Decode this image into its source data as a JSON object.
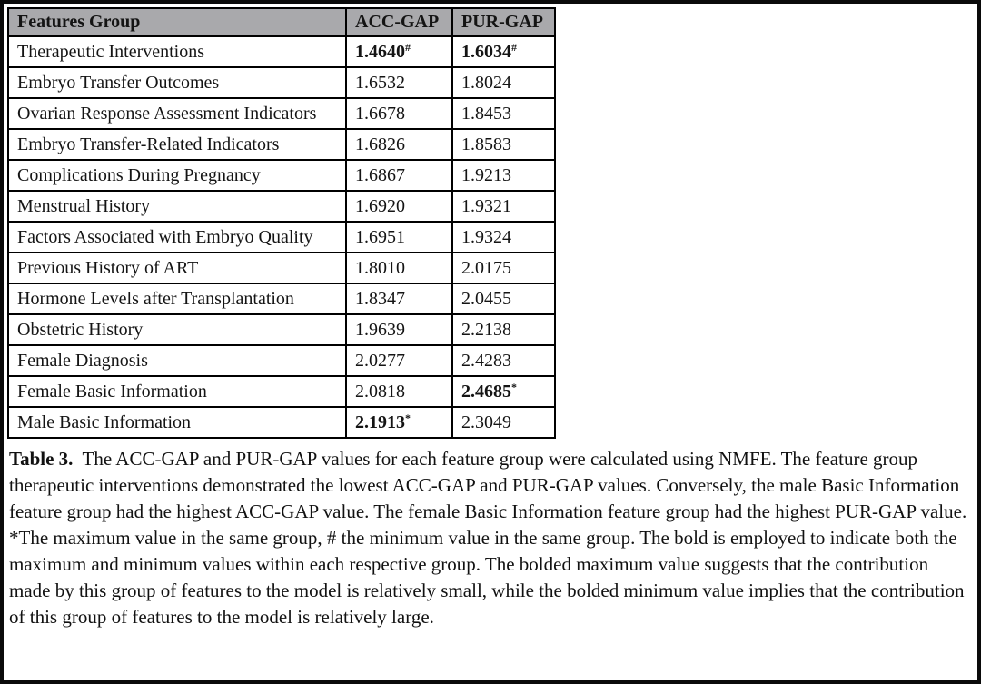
{
  "colors": {
    "header_bg": "#a9a9ac",
    "border": "#000000",
    "text": "#141414",
    "frame_border": "#0a0a0a"
  },
  "table": {
    "headers": [
      "Features Group",
      "ACC-GAP",
      "PUR-GAP"
    ],
    "rows": [
      {
        "feature": "Therapeutic Interventions",
        "acc": {
          "value": "1.4640",
          "marker": "#",
          "bold": true
        },
        "pur": {
          "value": "1.6034",
          "marker": "#",
          "bold": true
        }
      },
      {
        "feature": "Embryo Transfer Outcomes",
        "acc": {
          "value": "1.6532",
          "marker": "",
          "bold": false
        },
        "pur": {
          "value": "1.8024",
          "marker": "",
          "bold": false
        }
      },
      {
        "feature": "Ovarian Response Assessment Indicators",
        "acc": {
          "value": "1.6678",
          "marker": "",
          "bold": false
        },
        "pur": {
          "value": "1.8453",
          "marker": "",
          "bold": false
        }
      },
      {
        "feature": "Embryo Transfer-Related Indicators",
        "acc": {
          "value": "1.6826",
          "marker": "",
          "bold": false
        },
        "pur": {
          "value": "1.8583",
          "marker": "",
          "bold": false
        }
      },
      {
        "feature": "Complications During Pregnancy",
        "acc": {
          "value": "1.6867",
          "marker": "",
          "bold": false
        },
        "pur": {
          "value": "1.9213",
          "marker": "",
          "bold": false
        }
      },
      {
        "feature": "Menstrual History",
        "acc": {
          "value": "1.6920",
          "marker": "",
          "bold": false
        },
        "pur": {
          "value": "1.9321",
          "marker": "",
          "bold": false
        }
      },
      {
        "feature": "Factors Associated with Embryo Quality",
        "acc": {
          "value": "1.6951",
          "marker": "",
          "bold": false
        },
        "pur": {
          "value": "1.9324",
          "marker": "",
          "bold": false
        }
      },
      {
        "feature": "Previous History of ART",
        "acc": {
          "value": "1.8010",
          "marker": "",
          "bold": false
        },
        "pur": {
          "value": "2.0175",
          "marker": "",
          "bold": false
        }
      },
      {
        "feature": "Hormone Levels after Transplantation",
        "acc": {
          "value": "1.8347",
          "marker": "",
          "bold": false
        },
        "pur": {
          "value": "2.0455",
          "marker": "",
          "bold": false
        }
      },
      {
        "feature": "Obstetric History",
        "acc": {
          "value": "1.9639",
          "marker": "",
          "bold": false
        },
        "pur": {
          "value": "2.2138",
          "marker": "",
          "bold": false
        }
      },
      {
        "feature": "Female Diagnosis",
        "acc": {
          "value": "2.0277",
          "marker": "",
          "bold": false
        },
        "pur": {
          "value": "2.4283",
          "marker": "",
          "bold": false
        }
      },
      {
        "feature": "Female Basic Information",
        "acc": {
          "value": "2.0818",
          "marker": "",
          "bold": false
        },
        "pur": {
          "value": "2.4685",
          "marker": "*",
          "bold": true
        }
      },
      {
        "feature": "Male Basic Information",
        "acc": {
          "value": "2.1913",
          "marker": "*",
          "bold": true
        },
        "pur": {
          "value": "2.3049",
          "marker": "",
          "bold": false
        }
      }
    ]
  },
  "caption": {
    "label": "Table 3.",
    "text": "  The ACC-GAP and PUR-GAP values for each feature group were calculated using NMFE. The feature group therapeutic interventions demonstrated the lowest ACC-GAP and PUR-GAP values. Conversely, the male Basic Information feature group had the highest ACC-GAP value. The female Basic Information feature group had the highest PUR-GAP value. *The maximum value in the same group, # the minimum value in the same group. The bold is employed to indicate both the maximum and minimum values within each respective group. The bolded maximum value suggests that the contribution made by this group of features to the model is relatively small, while the bolded minimum value implies that the contribution of this group of features to the model is relatively large."
  }
}
